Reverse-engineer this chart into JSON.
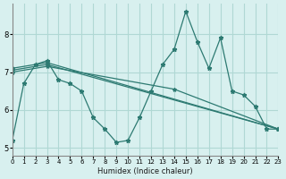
{
  "xlabel": "Humidex (Indice chaleur)",
  "ylabel": "",
  "bg_color": "#d8f0ef",
  "grid_color": "#b0d8d4",
  "line_color": "#2d7a72",
  "xlim": [
    0,
    23
  ],
  "ylim": [
    4.8,
    8.8
  ],
  "xticks": [
    0,
    1,
    2,
    3,
    4,
    5,
    6,
    7,
    8,
    9,
    10,
    11,
    12,
    13,
    14,
    15,
    16,
    17,
    18,
    19,
    20,
    21,
    22,
    23
  ],
  "yticks": [
    5,
    6,
    7,
    8
  ],
  "series": [
    {
      "x": [
        0,
        1,
        2,
        3,
        4,
        5,
        6,
        7,
        8,
        9,
        10,
        11,
        12,
        13,
        14,
        15,
        16,
        17,
        18,
        19,
        20,
        21,
        22,
        23
      ],
      "y": [
        5.2,
        6.7,
        7.2,
        7.3,
        6.8,
        6.7,
        6.5,
        5.8,
        5.5,
        5.15,
        5.2,
        5.8,
        6.5,
        7.2,
        7.6,
        8.6,
        7.8,
        7.1,
        7.9,
        6.5,
        6.4,
        6.1,
        5.5,
        5.5
      ]
    },
    {
      "x": [
        0,
        3,
        23
      ],
      "y": [
        7.1,
        7.25,
        5.5
      ]
    },
    {
      "x": [
        0,
        3,
        23
      ],
      "y": [
        7.05,
        7.2,
        5.5
      ]
    },
    {
      "x": [
        0,
        3,
        14,
        23
      ],
      "y": [
        7.0,
        7.15,
        6.55,
        5.5
      ]
    }
  ]
}
